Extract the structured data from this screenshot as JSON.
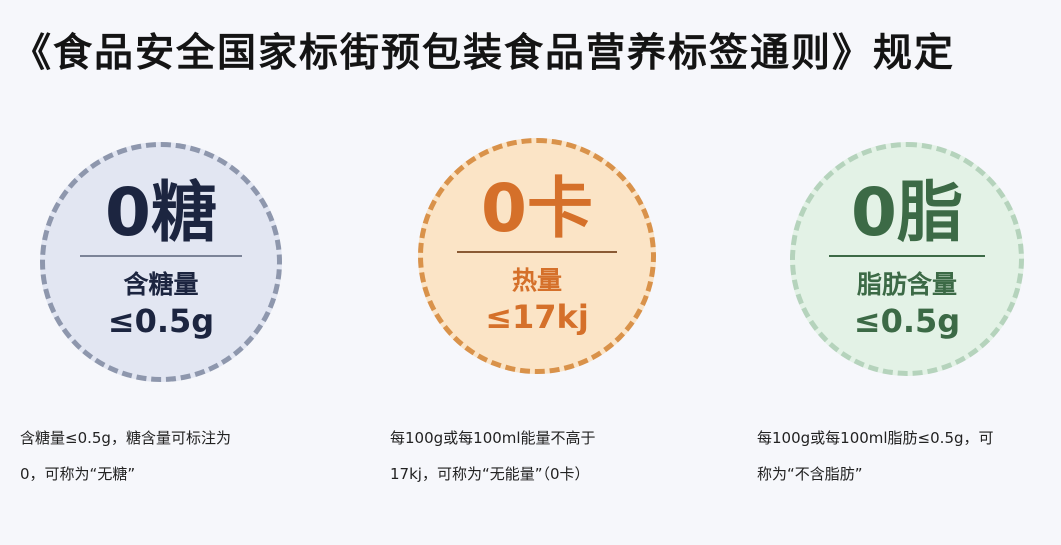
{
  "title": "《食品安全国家标街预包装食品营养标签通则》规定",
  "badges": [
    {
      "headline": "0糖",
      "label": "含糖量",
      "value": "≤0.5g",
      "color": "#1c2540",
      "fill": "#e2e6f2"
    },
    {
      "headline": "0卡",
      "label": "热量",
      "value": "≤17kj",
      "color": "#d5702a",
      "fill": "#fbe4c6"
    },
    {
      "headline": "0脂",
      "label": "脂肪含量",
      "value": "≤0.5g",
      "color": "#3c6a46",
      "fill": "#e3f2e6"
    }
  ],
  "descriptions": [
    {
      "line1": "含糖量≤0.5g，糖含量可标注为",
      "line2": "0，可称为“无糖”"
    },
    {
      "line1": "每100g或每100ml能量不高于",
      "line2": "17kj，可称为“无能量”（0卡）"
    },
    {
      "line1": "每100g或每100ml脂肪≤0.5g，可",
      "line2": "称为“不含脂肪”"
    }
  ]
}
